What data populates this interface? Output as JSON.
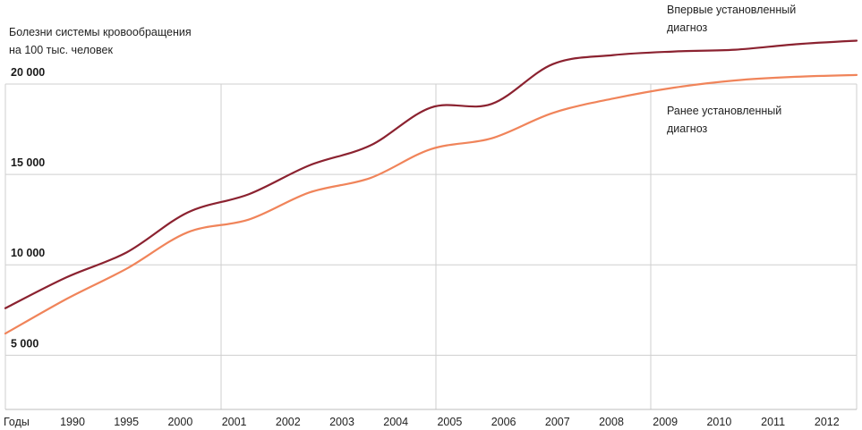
{
  "chart_data": {
    "type": "line",
    "ylabel": "Болезни системы кровообращения на 100 тыс. человек",
    "ylabel_lines": [
      "Болезни системы кровообращения",
      "на 100 тыс. человек"
    ],
    "xlabel": "Годы",
    "x": [
      "1990",
      "1995",
      "2000",
      "2001",
      "2002",
      "2003",
      "2004",
      "2005",
      "2006",
      "2007",
      "2008",
      "2009",
      "2010",
      "2011",
      "2012"
    ],
    "yticks": [
      5000,
      10000,
      15000,
      20000
    ],
    "ytick_labels": [
      "5 000",
      "10 000",
      "15 000",
      "20 000"
    ],
    "ylim": [
      2000,
      20000
    ],
    "grid": true,
    "series": [
      {
        "name": "Впервые установленный диагноз",
        "name_lines": [
          "Впервые установленный",
          "диагноз"
        ],
        "color": "#8b2230",
        "values": [
          7600,
          9300,
          10700,
          12900,
          13900,
          15500,
          16600,
          18700,
          18900,
          21100,
          21600,
          21800,
          21900,
          22200,
          22400
        ]
      },
      {
        "name": "Ранее установленный диагноз",
        "name_lines": [
          "Ранее установленный",
          "диагноз"
        ],
        "color": "#f0845a",
        "values": [
          6200,
          8100,
          9800,
          11800,
          12500,
          14000,
          14800,
          16400,
          17000,
          18400,
          19200,
          19800,
          20200,
          20400,
          20500
        ]
      }
    ]
  }
}
